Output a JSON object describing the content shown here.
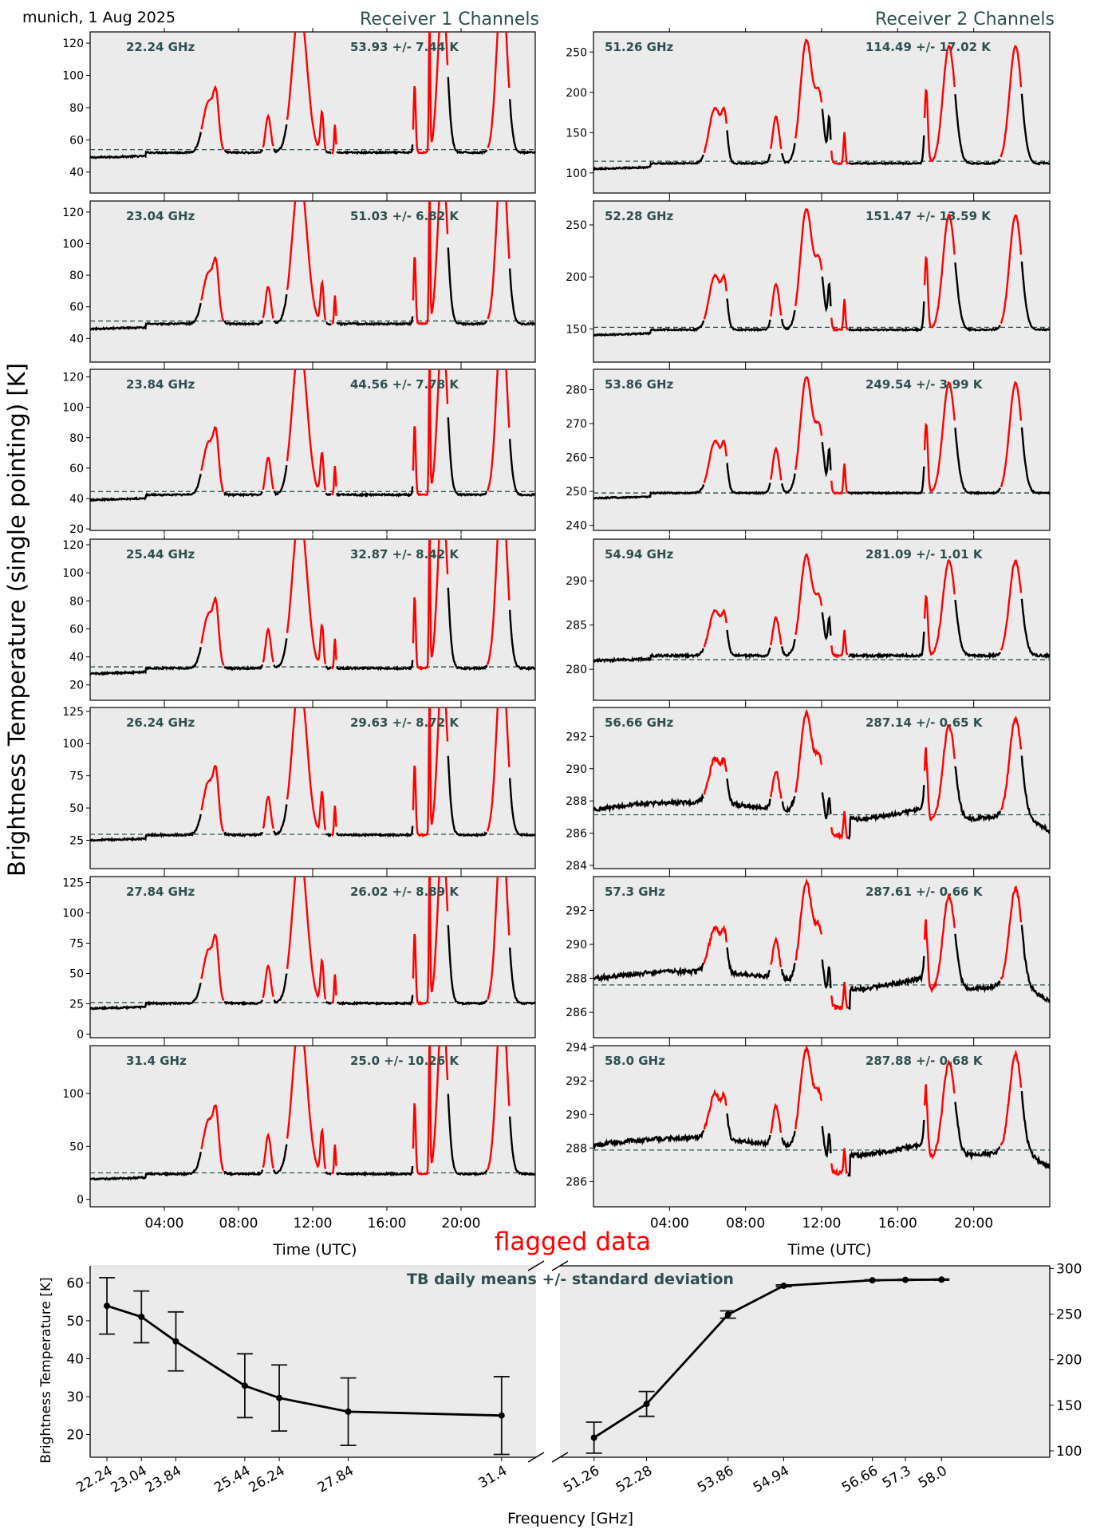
{
  "header": {
    "location_date": "munich, 1 Aug 2025",
    "receiver1_title": "Receiver 1 Channels",
    "receiver2_title": "Receiver 2 Channels",
    "flagged_label": "flagged data"
  },
  "colors": {
    "panel_bg": "#ebebeb",
    "title_color": "#2f4f4f",
    "flag_color": "#ff0000",
    "data_color": "#000000",
    "mean_line": "#2f4f4f"
  },
  "chart_data": [
    {
      "type": "line",
      "title": "Receiver 1 Channels",
      "ylabel": "Brightness Temperature (single pointing) [K]",
      "xlabel": "Time (UTC)",
      "xlim": [
        "00:00",
        "24:00"
      ],
      "x_ticks": [
        "04:00",
        "08:00",
        "12:00",
        "16:00",
        "20:00"
      ],
      "series_colors": {
        "valid": "#000000",
        "flagged": "#ff0000"
      },
      "panels": [
        {
          "freq_label": "22.24 GHz",
          "stats_label": "53.93 +/- 7.44 K",
          "mean": 53.93,
          "std": 7.44,
          "ylim": [
            27,
            127
          ],
          "yticks": [
            40,
            60,
            80,
            100,
            120
          ],
          "base": 49
        },
        {
          "freq_label": "23.04 GHz",
          "stats_label": "51.03 +/- 6.82 K",
          "mean": 51.03,
          "std": 6.82,
          "ylim": [
            25,
            127
          ],
          "yticks": [
            40,
            60,
            80,
            100,
            120
          ],
          "base": 46
        },
        {
          "freq_label": "23.84 GHz",
          "stats_label": "44.56 +/- 7.78 K",
          "mean": 44.56,
          "std": 7.78,
          "ylim": [
            19,
            125
          ],
          "yticks": [
            20,
            40,
            60,
            80,
            100,
            120
          ],
          "base": 39
        },
        {
          "freq_label": "25.44 GHz",
          "stats_label": "32.87 +/- 8.42 K",
          "mean": 32.87,
          "std": 8.42,
          "ylim": [
            9,
            124
          ],
          "yticks": [
            20,
            40,
            60,
            80,
            100,
            120
          ],
          "base": 28
        },
        {
          "freq_label": "26.24 GHz",
          "stats_label": "29.63 +/- 8.72 K",
          "mean": 29.63,
          "std": 8.72,
          "ylim": [
            3,
            128
          ],
          "yticks": [
            25,
            50,
            75,
            100,
            125
          ],
          "base": 25
        },
        {
          "freq_label": "27.84 GHz",
          "stats_label": "26.02 +/- 8.89 K",
          "mean": 26.02,
          "std": 8.89,
          "ylim": [
            -3,
            130
          ],
          "yticks": [
            0,
            25,
            50,
            75,
            100,
            125
          ],
          "base": 21
        },
        {
          "freq_label": "31.4 GHz",
          "stats_label": "25.0 +/- 10.26 K",
          "mean": 25.0,
          "std": 10.26,
          "ylim": [
            -7,
            145
          ],
          "yticks": [
            0,
            50,
            100
          ],
          "base": 19
        }
      ]
    },
    {
      "type": "line",
      "title": "Receiver 2 Channels",
      "xlabel": "Time (UTC)",
      "xlim": [
        "00:00",
        "24:00"
      ],
      "x_ticks": [
        "04:00",
        "08:00",
        "12:00",
        "16:00",
        "20:00"
      ],
      "series_colors": {
        "valid": "#000000",
        "flagged": "#ff0000"
      },
      "panels": [
        {
          "freq_label": "51.26 GHz",
          "stats_label": "114.49 +/- 17.02 K",
          "mean": 114.49,
          "std": 17.02,
          "ylim": [
            75,
            275
          ],
          "yticks": [
            100,
            150,
            200,
            250
          ],
          "base": 105
        },
        {
          "freq_label": "52.28 GHz",
          "stats_label": "151.47 +/- 13.59 K",
          "mean": 151.47,
          "std": 13.59,
          "ylim": [
            118,
            273
          ],
          "yticks": [
            150,
            200,
            250
          ],
          "base": 144
        },
        {
          "freq_label": "53.86 GHz",
          "stats_label": "249.54 +/- 3.99 K",
          "mean": 249.54,
          "std": 3.99,
          "ylim": [
            238.5,
            286
          ],
          "yticks": [
            240,
            250,
            260,
            270,
            280
          ],
          "base": 248
        },
        {
          "freq_label": "54.94 GHz",
          "stats_label": "281.09 +/- 1.01 K",
          "mean": 281.09,
          "std": 1.01,
          "ylim": [
            276.5,
            294.7
          ],
          "yticks": [
            280,
            285,
            290
          ],
          "base": 281
        },
        {
          "freq_label": "56.66 GHz",
          "stats_label": "287.14 +/- 0.65 K",
          "mean": 287.14,
          "std": 0.65,
          "ylim": [
            283.8,
            293.8
          ],
          "yticks": [
            284,
            286,
            288,
            290,
            292
          ],
          "base": 287.3
        },
        {
          "freq_label": "57.3 GHz",
          "stats_label": "287.61 +/- 0.66 K",
          "mean": 287.61,
          "std": 0.66,
          "ylim": [
            284.5,
            294
          ],
          "yticks": [
            286,
            288,
            290,
            292
          ],
          "base": 287.8
        },
        {
          "freq_label": "58.0 GHz",
          "stats_label": "287.88 +/- 0.68 K",
          "mean": 287.88,
          "std": 0.68,
          "ylim": [
            284.5,
            294.1
          ],
          "yticks": [
            286,
            288,
            290,
            292,
            294
          ],
          "base": 288
        }
      ]
    },
    {
      "type": "line",
      "title": "TB daily means +/- standard deviation",
      "xlabel": "Frequency [GHz]",
      "ylabel": "Brightness Temperature [K]",
      "broken_x_axis": true,
      "left_axis": {
        "x": [
          22.24,
          23.04,
          23.84,
          25.44,
          26.24,
          27.84,
          31.4
        ],
        "tick_labels": [
          "22.24",
          "23.04",
          "23.84",
          "25.44",
          "26.24",
          "27.84",
          "31.4"
        ],
        "means": [
          53.93,
          51.03,
          44.56,
          32.87,
          29.63,
          26.02,
          25.0
        ],
        "std": [
          7.44,
          6.82,
          7.78,
          8.42,
          8.72,
          8.89,
          10.26
        ],
        "ylim": [
          14,
          64.5
        ],
        "yticks": [
          20,
          30,
          40,
          50,
          60
        ]
      },
      "right_axis": {
        "x": [
          51.26,
          52.28,
          53.86,
          54.94,
          56.66,
          57.3,
          58.0
        ],
        "tick_labels": [
          "51.26",
          "52.28",
          "53.86",
          "54.94",
          "56.66",
          "57.3",
          "58.0"
        ],
        "means": [
          114.49,
          151.47,
          249.54,
          281.09,
          287.14,
          287.61,
          287.88
        ],
        "std": [
          17.02,
          13.59,
          3.99,
          1.01,
          0.65,
          0.66,
          0.68
        ],
        "ylim": [
          93,
          303
        ],
        "yticks": [
          100,
          150,
          200,
          250,
          300
        ]
      }
    }
  ]
}
